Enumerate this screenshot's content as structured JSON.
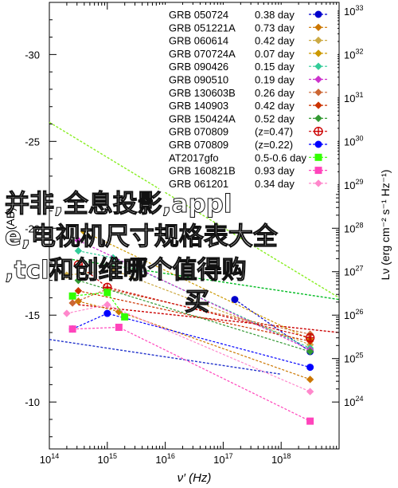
{
  "chart_data": {
    "type": "line",
    "xlabel": "ν′ (Hz)",
    "ylabel_left": "M (AB)",
    "ylabel_right": "Lν (erg cm⁻² s⁻¹ Hz⁻¹)",
    "x_log_range": [
      14,
      19
    ],
    "x_ticks": [
      {
        "exp": 14,
        "label": "10",
        "sup": "14"
      },
      {
        "exp": 15,
        "label": "10",
        "sup": "15"
      },
      {
        "exp": 16,
        "label": "10",
        "sup": "16"
      },
      {
        "exp": 17,
        "label": "10",
        "sup": "17"
      },
      {
        "exp": 18,
        "label": "10",
        "sup": "18"
      }
    ],
    "y_left_range": [
      -7.3,
      -33.0
    ],
    "y_left_ticks": [
      {
        "value": -10,
        "label": "-10"
      },
      {
        "value": -15,
        "label": "-15"
      },
      {
        "value": -20,
        "label": "-20"
      },
      {
        "value": -25,
        "label": "-25"
      },
      {
        "value": -30,
        "label": "-30"
      }
    ],
    "y_right_ticks": [
      {
        "log": 24,
        "label": "10",
        "sup": "24"
      },
      {
        "log": 25,
        "label": "10",
        "sup": "25"
      },
      {
        "log": 26,
        "label": "10",
        "sup": "26"
      },
      {
        "log": 27,
        "label": "10",
        "sup": "27"
      },
      {
        "log": 28,
        "label": "10",
        "sup": "28"
      },
      {
        "log": 29,
        "label": "10",
        "sup": "29"
      },
      {
        "log": 30,
        "label": "10",
        "sup": "30"
      },
      {
        "log": 31,
        "label": "10",
        "sup": "31"
      },
      {
        "log": 32,
        "label": "10",
        "sup": "32"
      },
      {
        "log": 33,
        "label": "10",
        "sup": "33"
      }
    ],
    "legend_position": "top-right",
    "series": [
      {
        "name": "GRB 050724",
        "value": "0.38 day",
        "color": "#0000cc",
        "marker": "dot",
        "points": [
          [
            17.2,
            -15.9
          ],
          [
            18.5,
            -12.9
          ]
        ]
      },
      {
        "name": "GRB 051221A",
        "value": "0.73 day",
        "color": "#cc7700",
        "marker": "diamond",
        "points": [
          [
            14.5,
            -15.8
          ],
          [
            15.2,
            -15.2
          ],
          [
            18.5,
            -11.3
          ]
        ]
      },
      {
        "name": "GRB 060614",
        "value": "0.42 day",
        "color": "#ccaa44",
        "marker": "diamond",
        "points": [
          [
            14.3,
            -17.3
          ],
          [
            15.1,
            -17.6
          ],
          [
            18.5,
            -13.3
          ]
        ]
      },
      {
        "name": "GRB 070724A",
        "value": "0.07 day",
        "color": "#cc9900",
        "marker": "diamond",
        "points": [
          [
            14.6,
            -19.8
          ],
          [
            18.5,
            -13.6
          ]
        ]
      },
      {
        "name": "GRB 090426",
        "value": "0.15 day",
        "color": "#33cc99",
        "marker": "diamond",
        "points": [
          [
            14.5,
            -18.7
          ],
          [
            15.1,
            -18.3
          ],
          [
            18.5,
            -13.1
          ]
        ]
      },
      {
        "name": "GRB 090510",
        "value": "0.19 day",
        "color": "#cc33cc",
        "marker": "diamond",
        "points": [
          [
            14.5,
            -19.3
          ],
          [
            18.5,
            -13.0
          ]
        ]
      },
      {
        "name": "GRB 130603B",
        "value": "0.26 day",
        "color": "#cc6633",
        "marker": "diamond",
        "points": [
          [
            14.4,
            -15.7
          ],
          [
            15.0,
            -16.5
          ],
          [
            18.5,
            -13.9
          ]
        ]
      },
      {
        "name": "GRB 140903",
        "value": "0.42 day",
        "color": "#cc3300",
        "marker": "diamond",
        "points": [
          [
            14.5,
            -16.4
          ],
          [
            18.5,
            -13.5
          ]
        ]
      },
      {
        "name": "GRB 150424A",
        "value": "0.52 day",
        "color": "#339933",
        "marker": "diamond",
        "points": [
          [
            14.5,
            -17.0
          ],
          [
            18.5,
            -12.9
          ]
        ]
      },
      {
        "name": "GRB 070809",
        "value": "(z=0.47)",
        "color": "#cc0000",
        "marker": "circle-plus",
        "points": [
          [
            14.5,
            -17.9
          ],
          [
            15.0,
            -16.6
          ],
          [
            18.5,
            -13.7
          ]
        ]
      },
      {
        "name": "GRB 070809",
        "value": "(z=0.22)",
        "color": "#0000ff",
        "marker": "dot",
        "points": [
          [
            14.4,
            -14.2
          ],
          [
            15.0,
            -15.1
          ],
          [
            18.5,
            -12.0
          ]
        ]
      },
      {
        "name": "AT2017gfo",
        "value": "0.5-0.6 day",
        "color": "#33ff00",
        "marker": "square",
        "points": [
          [
            14.4,
            -16.1
          ],
          [
            15.0,
            -16.3
          ],
          [
            15.3,
            -14.9
          ]
        ]
      },
      {
        "name": "GRB 160821B",
        "value": "0.93 day",
        "color": "#ff44bb",
        "marker": "square",
        "points": [
          [
            14.4,
            -14.2
          ],
          [
            15.2,
            -14.3
          ],
          [
            18.5,
            -8.9
          ]
        ]
      },
      {
        "name": "GRB 061201",
        "value": "0.34 day",
        "color": "#ff88cc",
        "marker": "diamond",
        "points": [
          [
            14.3,
            -15.1
          ],
          [
            15.0,
            -15.6
          ],
          [
            18.5,
            -10.6
          ]
        ]
      }
    ],
    "reference_lines": [
      {
        "color": "#88ee22",
        "points": [
          [
            14.0,
            -26.1
          ],
          [
            19.0,
            -16.0
          ]
        ]
      },
      {
        "color": "#00bb22",
        "points": [
          [
            14.4,
            -18.2
          ],
          [
            19.0,
            -15.9
          ]
        ]
      },
      {
        "color": "#cc0000",
        "points": [
          [
            14.5,
            -15.6
          ],
          [
            19.0,
            -14.0
          ]
        ]
      },
      {
        "color": "#2233cc",
        "points": [
          [
            14.0,
            -13.6
          ],
          [
            18.0,
            -11.6
          ]
        ]
      }
    ],
    "annotations": [
      "并非,全息投影,appl",
      "e,电视机尺寸规格表大全",
      ",tcl和创维哪个值得购",
      "买"
    ]
  }
}
